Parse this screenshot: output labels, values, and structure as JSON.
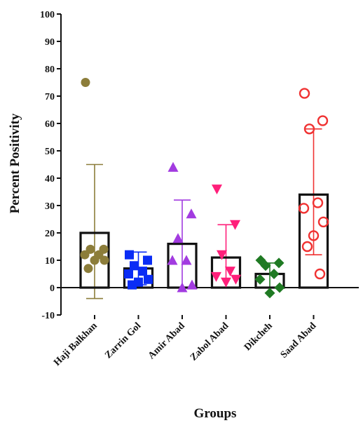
{
  "chart_data": {
    "type": "bar",
    "title": "",
    "xlabel": "Groups",
    "ylabel": "Percent Positivity",
    "ylim": [
      -10,
      100
    ],
    "yticks": [
      -10,
      0,
      10,
      20,
      30,
      40,
      50,
      60,
      70,
      80,
      90,
      100
    ],
    "grid": false,
    "categories": [
      "Haji Balkhan",
      "Zarrin Gol",
      "Amir Abad",
      "Zabol Abad",
      "Dikcheh",
      "Saad Abad"
    ],
    "series": [
      {
        "category": "Haji Balkhan",
        "mean": 20,
        "error_upper": 45,
        "error_lower": -4,
        "marker": "circle-filled",
        "color": "#8c7d3a",
        "points": [
          75,
          14,
          14,
          12,
          12,
          10,
          10,
          7
        ]
      },
      {
        "category": "Zarrin Gol",
        "mean": 7,
        "error_upper": 13,
        "error_lower": 1,
        "marker": "square-filled",
        "color": "#0a2cf5",
        "points": [
          12,
          10,
          8,
          6,
          5,
          3,
          2,
          1
        ]
      },
      {
        "category": "Amir Abad",
        "mean": 16,
        "error_upper": 32,
        "error_lower": 0,
        "marker": "triangle-up",
        "color": "#a23be0",
        "points": [
          44,
          27,
          18,
          10,
          10,
          1,
          0
        ]
      },
      {
        "category": "Zabol Abad",
        "mean": 11,
        "error_upper": 23,
        "error_lower": 0,
        "marker": "triangle-down",
        "color": "#ff1f7a",
        "points": [
          36,
          23,
          12,
          6,
          4,
          3,
          2
        ]
      },
      {
        "category": "Dikcheh",
        "mean": 5,
        "error_upper": 9,
        "error_lower": 0,
        "marker": "diamond-filled",
        "color": "#1f7a23",
        "points": [
          10,
          9,
          8,
          5,
          3,
          0,
          -2
        ]
      },
      {
        "category": "Saad Abad",
        "mean": 34,
        "error_upper": 58,
        "error_lower": 12,
        "marker": "circle-open",
        "color": "#f03232",
        "points": [
          71,
          61,
          58,
          31,
          29,
          24,
          19,
          15,
          5
        ]
      }
    ]
  }
}
